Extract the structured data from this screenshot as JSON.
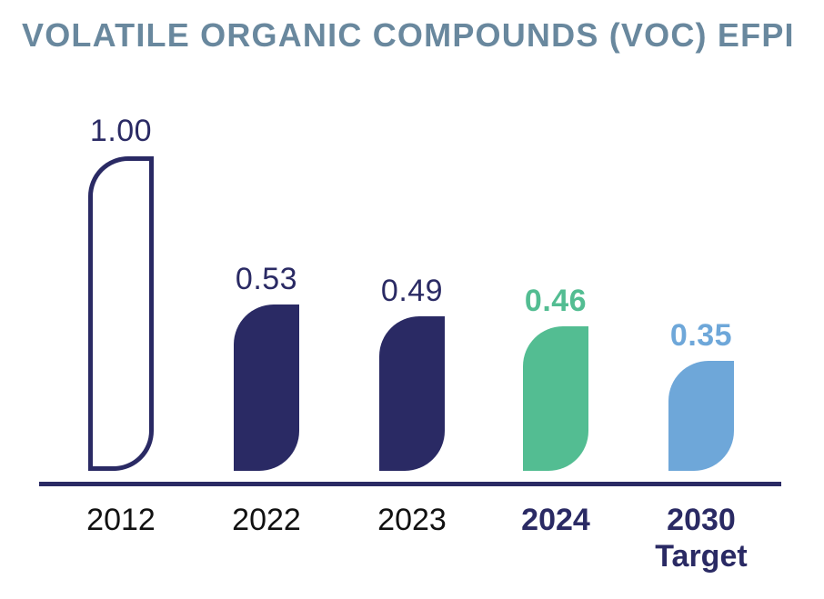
{
  "header": {
    "title": "VOLATILE ORGANIC COMPOUNDS (VOC) EFPI",
    "title_color": "#69889e"
  },
  "chart_data": {
    "type": "bar",
    "title": "VOLATILE ORGANIC COMPOUNDS (VOC) EFPI",
    "categories": [
      "2012",
      "2022",
      "2023",
      "2024",
      "2030 Target"
    ],
    "values": [
      1.0,
      0.53,
      0.49,
      0.46,
      0.35
    ],
    "value_labels": [
      "1.00",
      "0.53",
      "0.49",
      "0.46",
      "0.35"
    ],
    "xlabel": "",
    "ylabel": "",
    "ylim": [
      0,
      1.0
    ],
    "grid": false,
    "legend": false,
    "axis_color": "#2a2a64",
    "colors": {
      "navy": "#2a2a64",
      "green": "#53bd92",
      "blue": "#6ea7d9",
      "title_steel_blue": "#69889e",
      "year_text_black": "#111111"
    },
    "bars": [
      {
        "category": "2012",
        "category_line2": "",
        "value": 1.0,
        "label": "1.00",
        "style": "outline",
        "color": "#2a2a64",
        "label_color": "#2a2a64",
        "label_bold": false,
        "category_color": "#111111",
        "category_bold": false
      },
      {
        "category": "2022",
        "category_line2": "",
        "value": 0.53,
        "label": "0.53",
        "style": "fill",
        "color": "#2a2a64",
        "label_color": "#2a2a64",
        "label_bold": false,
        "category_color": "#111111",
        "category_bold": false
      },
      {
        "category": "2023",
        "category_line2": "",
        "value": 0.49,
        "label": "0.49",
        "style": "fill",
        "color": "#2a2a64",
        "label_color": "#2a2a64",
        "label_bold": false,
        "category_color": "#111111",
        "category_bold": false
      },
      {
        "category": "2024",
        "category_line2": "",
        "value": 0.46,
        "label": "0.46",
        "style": "fill",
        "color": "#53bd92",
        "label_color": "#53bd92",
        "label_bold": true,
        "category_color": "#2a2a64",
        "category_bold": true
      },
      {
        "category": "2030",
        "category_line2": "Target",
        "value": 0.35,
        "label": "0.35",
        "style": "fill",
        "color": "#6ea7d9",
        "label_color": "#6ea7d9",
        "label_bold": true,
        "category_color": "#2a2a64",
        "category_bold": true
      }
    ]
  }
}
